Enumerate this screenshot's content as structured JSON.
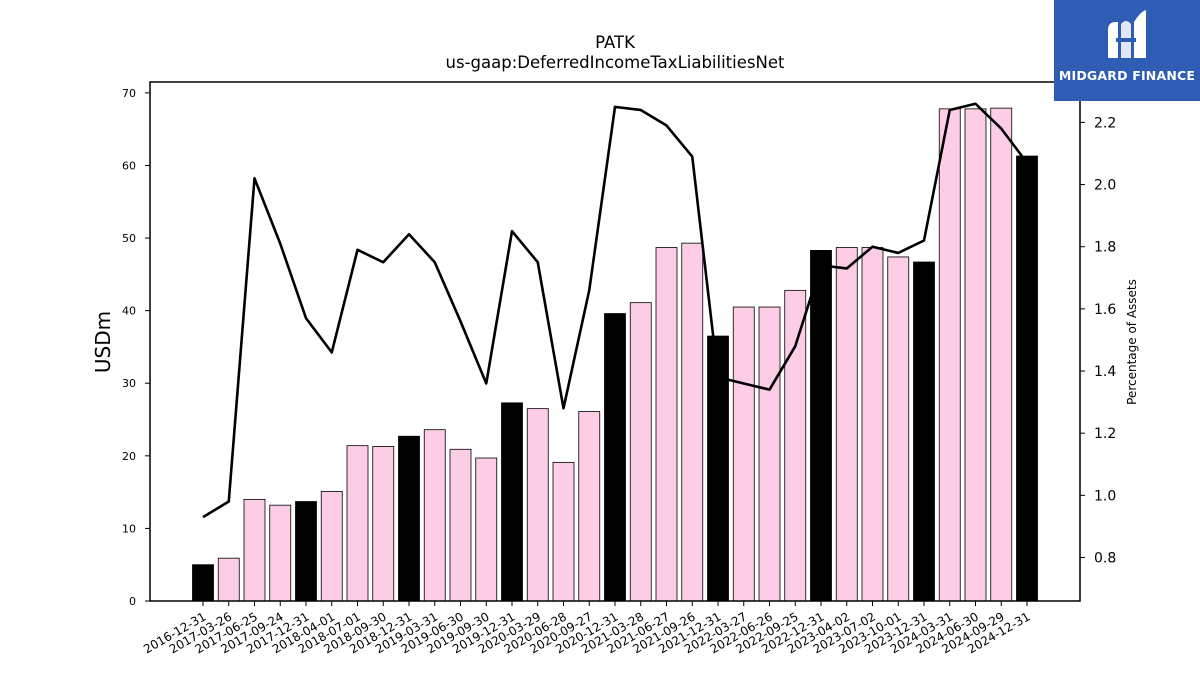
{
  "brand": {
    "name": "MIDGARD FINANCE",
    "bg_color": "#2f5db3"
  },
  "chart_data": {
    "type": "bar",
    "title": "PATK",
    "subtitle": "us-gaap:DeferredIncomeTaxLiabilitiesNet",
    "ylabel": "USDm",
    "y2label": "Percentage of Assets",
    "ylim": [
      0,
      71.5
    ],
    "y2lim": [
      0.66,
      2.33
    ],
    "yticks": [
      0,
      10,
      20,
      30,
      40,
      50,
      60,
      70
    ],
    "y2ticks": [
      0.8,
      1.0,
      1.2,
      1.4,
      1.6,
      1.8,
      2.0,
      2.2
    ],
    "y2tick_labels": [
      "0.8",
      "1.0",
      "1.2",
      "1.4",
      "1.6",
      "1.8",
      "2.0",
      "2.2"
    ],
    "categories": [
      "2016-12-31",
      "2017-03-26",
      "2017-06-25",
      "2017-09-24",
      "2017-12-31",
      "2018-04-01",
      "2018-07-01",
      "2018-09-30",
      "2018-12-31",
      "2019-03-31",
      "2019-06-30",
      "2019-09-30",
      "2019-12-31",
      "2020-03-29",
      "2020-06-28",
      "2020-09-27",
      "2020-12-31",
      "2021-03-28",
      "2021-06-27",
      "2021-09-26",
      "2021-12-31",
      "2022-03-27",
      "2022-06-26",
      "2022-09-25",
      "2022-12-31",
      "2023-04-02",
      "2023-07-02",
      "2023-10-01",
      "2023-12-31",
      "2024-03-31",
      "2024-06-30",
      "2024-09-29",
      "2024-12-31"
    ],
    "series": [
      {
        "type": "bar",
        "axis": "left",
        "values": [
          5.0,
          5.9,
          14.0,
          13.2,
          13.7,
          15.1,
          21.4,
          21.3,
          22.7,
          23.6,
          20.9,
          19.7,
          27.3,
          26.5,
          19.1,
          26.1,
          39.6,
          41.1,
          48.7,
          49.3,
          36.5,
          40.5,
          40.5,
          42.8,
          48.3,
          48.7,
          48.7,
          47.4,
          46.7,
          67.8,
          67.8,
          67.9,
          61.3
        ],
        "colors": [
          "#000000",
          "#fccde5",
          "#fccde5",
          "#fccde5",
          "#000000",
          "#fccde5",
          "#fccde5",
          "#fccde5",
          "#000000",
          "#fccde5",
          "#fccde5",
          "#fccde5",
          "#000000",
          "#fccde5",
          "#fccde5",
          "#fccde5",
          "#000000",
          "#fccde5",
          "#fccde5",
          "#fccde5",
          "#000000",
          "#fccde5",
          "#fccde5",
          "#fccde5",
          "#000000",
          "#fccde5",
          "#fccde5",
          "#fccde5",
          "#000000",
          "#fccde5",
          "#fccde5",
          "#fccde5",
          "#000000"
        ]
      },
      {
        "type": "line",
        "axis": "right",
        "color": "#000000",
        "values": [
          0.93,
          0.98,
          2.02,
          1.81,
          1.57,
          1.46,
          1.79,
          1.75,
          1.84,
          1.75,
          1.56,
          1.36,
          1.85,
          1.75,
          1.28,
          1.66,
          2.25,
          2.24,
          2.19,
          2.09,
          1.38,
          1.36,
          1.34,
          1.48,
          1.74,
          1.73,
          1.8,
          1.78,
          1.82,
          2.24,
          2.26,
          2.18,
          2.07
        ]
      }
    ]
  }
}
